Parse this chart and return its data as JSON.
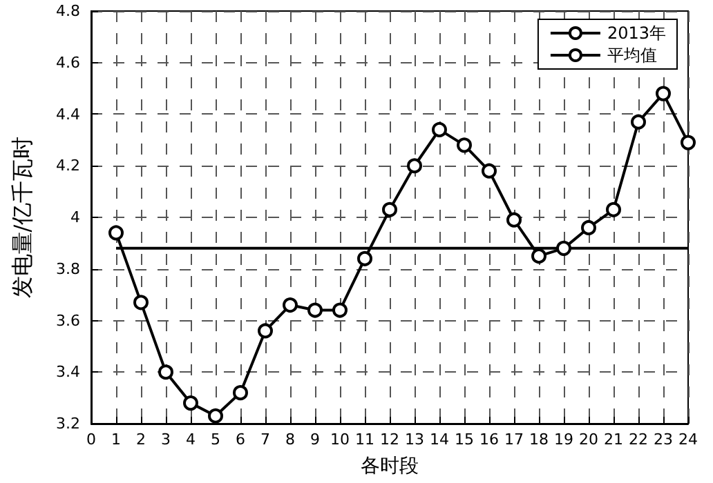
{
  "chart_data": {
    "type": "line",
    "xlabel": "各时段",
    "ylabel": "发电量/亿千瓦时",
    "xlim": [
      0,
      24
    ],
    "xticks": [
      0,
      1,
      2,
      3,
      4,
      5,
      6,
      7,
      8,
      9,
      10,
      11,
      12,
      13,
      14,
      15,
      16,
      17,
      18,
      19,
      20,
      21,
      22,
      23,
      24
    ],
    "ylim": [
      3.2,
      4.8
    ],
    "yticks": [
      3.2,
      3.4,
      3.6,
      3.8,
      4,
      4.2,
      4.4,
      4.6,
      4.8
    ],
    "series": [
      {
        "name": "2013年",
        "color": "#000000",
        "marker": "circle",
        "x": [
          1,
          2,
          3,
          4,
          5,
          6,
          7,
          8,
          9,
          10,
          11,
          12,
          13,
          14,
          15,
          16,
          17,
          18,
          19,
          20,
          21,
          22,
          23,
          24
        ],
        "values": [
          3.94,
          3.67,
          3.4,
          3.28,
          3.23,
          3.32,
          3.56,
          3.66,
          3.64,
          3.64,
          3.84,
          4.03,
          4.2,
          4.34,
          4.28,
          4.18,
          3.99,
          3.85,
          3.88,
          3.96,
          4.03,
          4.37,
          4.48,
          4.29
        ]
      },
      {
        "name": "平均值",
        "color": "#000000",
        "marker": "none",
        "x": [
          1,
          24
        ],
        "values": [
          3.88,
          3.88
        ]
      }
    ],
    "grid": true,
    "legend": "top right",
    "line_style": "solid"
  }
}
